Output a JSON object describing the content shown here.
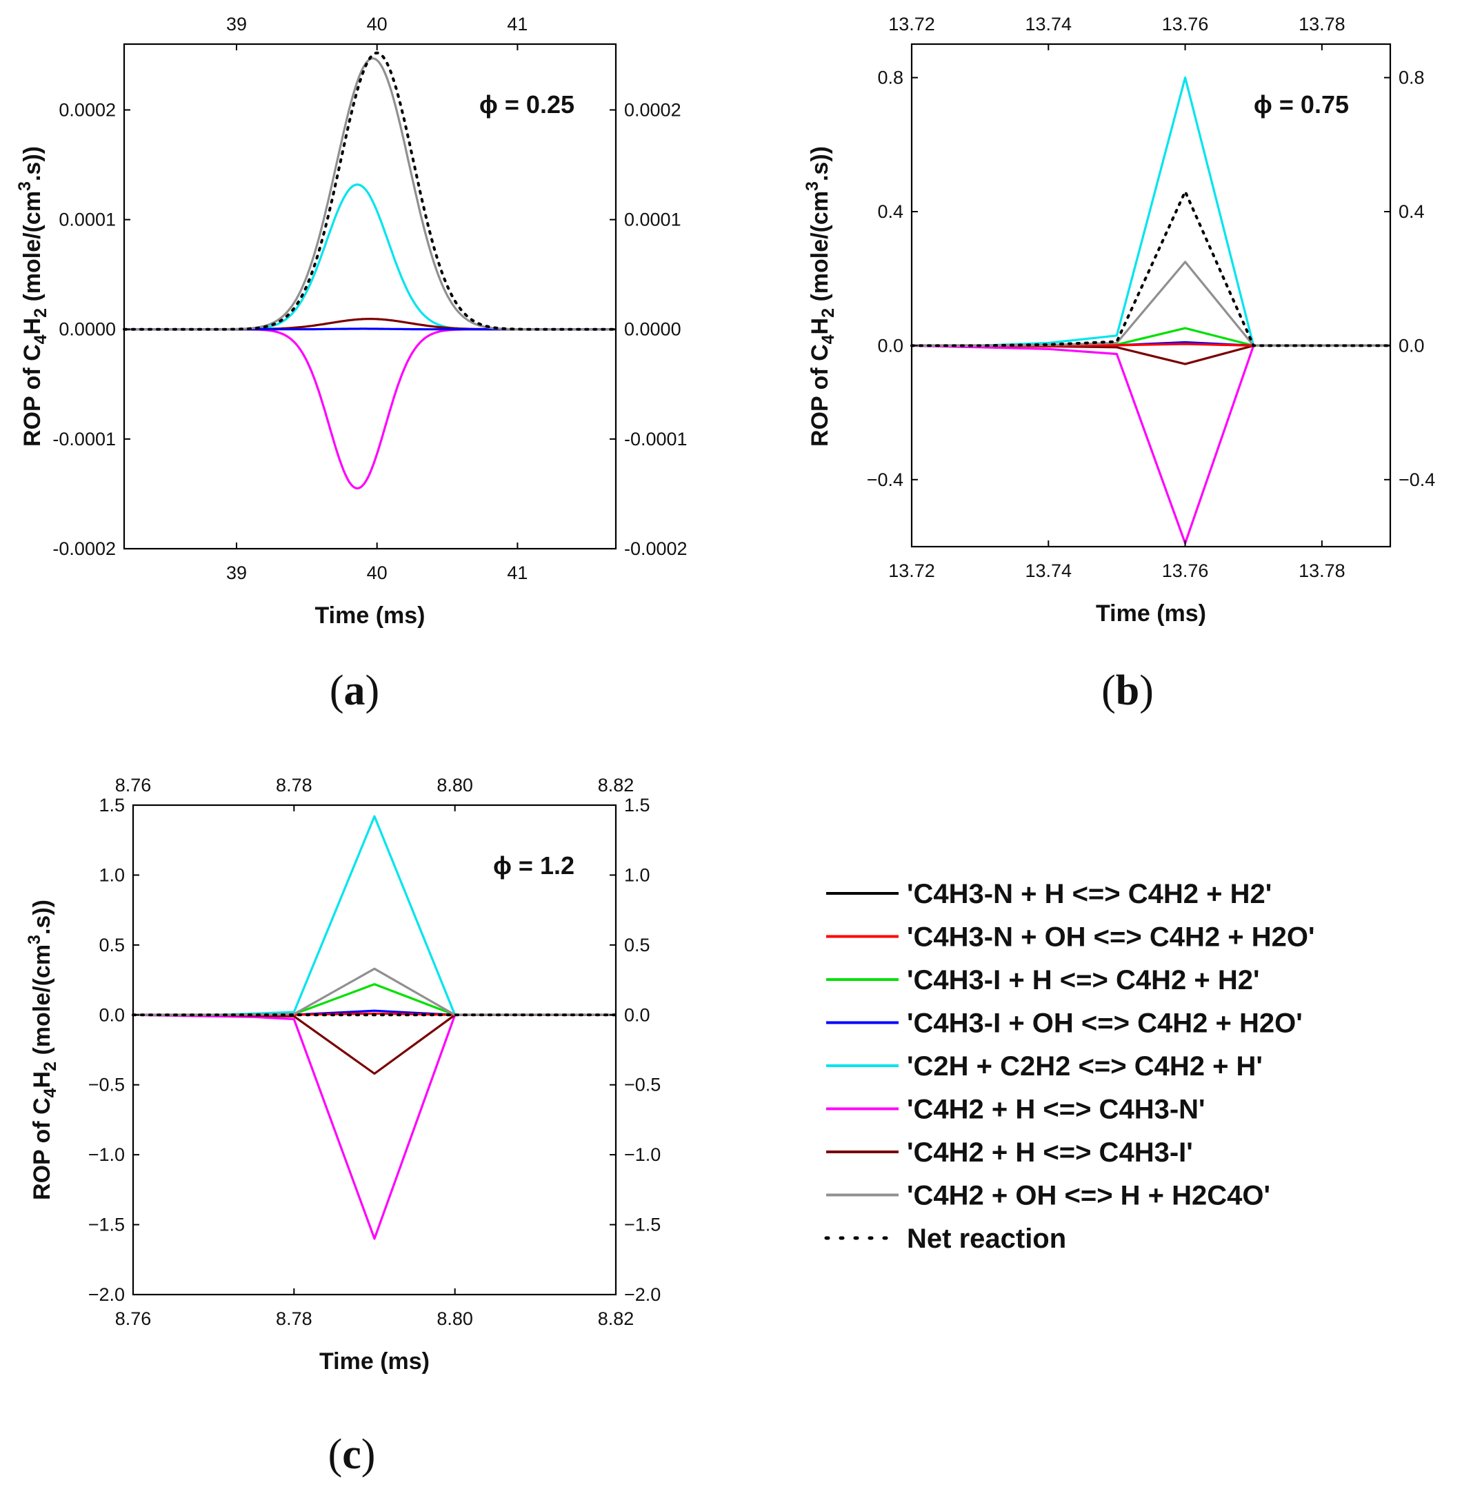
{
  "chart_data": [
    {
      "type": "line",
      "panel": "(a)",
      "panel_letter": "a",
      "annotation": "ϕ = 0.25",
      "xlabel": "Time (ms)",
      "ylabel_parts": [
        "ROP of C",
        "4",
        "H",
        "2",
        " (mole/(cm",
        "3",
        ".s))"
      ],
      "xlim": [
        38.2,
        41.7
      ],
      "ylim": [
        -0.0002,
        0.00026
      ],
      "x_ticks": [
        39,
        40,
        41
      ],
      "x_tick_labels": [
        "39",
        "40",
        "41"
      ],
      "y_ticks": [
        -0.0002,
        -0.0001,
        0.0,
        0.0001,
        0.0002
      ],
      "y_tick_labels": [
        "-0.0002",
        "-0.0001",
        "0.0000",
        "0.0001",
        "0.0002"
      ],
      "curve_shape": "gaussian",
      "gaussian_series": [
        {
          "name": "'C2H + C2H2 <=> C4H2 + H'",
          "peak": 0.000132,
          "center": 39.86,
          "sigma": 0.22
        },
        {
          "name": "'C4H2 + H <=> C4H3-N'",
          "peak": -0.000145,
          "center": 39.86,
          "sigma": 0.2
        },
        {
          "name": "'C4H2 + H <=> C4H3-I'",
          "peak": 9.5e-06,
          "center": 39.95,
          "sigma": 0.28
        },
        {
          "name": "'C4H3-I + OH <=> C4H2 + H2O'",
          "peak": 5e-07,
          "center": 39.9,
          "sigma": 0.2
        },
        {
          "name": "'C4H2 + OH <=> H + H2C4O'",
          "peak": 0.000247,
          "center": 39.97,
          "sigma": 0.26
        },
        {
          "name": "Net reaction",
          "peak": 0.000252,
          "center": 40.0,
          "sigma": 0.26
        }
      ]
    },
    {
      "type": "line",
      "panel": "(b)",
      "panel_letter": "b",
      "annotation": "ϕ = 0.75",
      "xlabel": "Time (ms)",
      "ylabel_parts": [
        "ROP of C",
        "4",
        "H",
        "2",
        " (mole/(cm",
        "3",
        ".s))"
      ],
      "xlim": [
        13.72,
        13.79
      ],
      "ylim": [
        -0.6,
        0.9
      ],
      "x_ticks": [
        13.72,
        13.74,
        13.76,
        13.78
      ],
      "x_tick_labels": [
        "13.72",
        "13.74",
        "13.76",
        "13.78"
      ],
      "y_ticks": [
        -0.4,
        0.0,
        0.4,
        0.8
      ],
      "y_tick_labels": [
        "−0.4",
        "0.0",
        "0.4",
        "0.8"
      ],
      "curve_shape": "piecewise",
      "x": [
        13.72,
        13.73,
        13.74,
        13.75,
        13.76,
        13.77,
        13.79
      ],
      "series": [
        {
          "name": "'C2H + C2H2 <=> C4H2 + H'",
          "values": [
            0,
            0,
            0.008,
            0.03,
            0.8,
            0.0,
            0
          ]
        },
        {
          "name": "'C4H2 + H <=> C4H3-N'",
          "values": [
            0,
            -0.005,
            -0.01,
            -0.025,
            -0.59,
            0.0,
            0
          ]
        },
        {
          "name": "'C4H2 + H <=> C4H3-I'",
          "values": [
            0,
            0,
            -0.002,
            -0.005,
            -0.055,
            0.0,
            0
          ]
        },
        {
          "name": "'C4H3-I + H <=> C4H2 + H2'",
          "values": [
            0,
            0,
            0.001,
            0.003,
            0.052,
            0.0,
            0
          ]
        },
        {
          "name": "'C4H3-I + OH <=> C4H2 + H2O'",
          "values": [
            0,
            0,
            0,
            0.001,
            0.01,
            0.0,
            0
          ]
        },
        {
          "name": "'C4H3-N + OH <=> C4H2 + H2O'",
          "values": [
            0,
            0,
            0,
            0.001,
            0.005,
            0.0,
            0
          ]
        },
        {
          "name": "'C4H2 + OH <=> H + H2C4O'",
          "values": [
            0,
            0,
            0.002,
            0.008,
            0.25,
            0.0,
            0
          ]
        },
        {
          "name": "Net reaction",
          "values": [
            0,
            0,
            0.003,
            0.012,
            0.46,
            0.0,
            0
          ]
        }
      ]
    },
    {
      "type": "line",
      "panel": "(c)",
      "panel_letter": "c",
      "annotation": "ϕ = 1.2",
      "xlabel": "Time (ms)",
      "ylabel_parts": [
        "ROP of C",
        "4",
        "H",
        "2",
        " (mole/(cm",
        "3",
        ".s))"
      ],
      "xlim": [
        8.76,
        8.82
      ],
      "ylim": [
        -2.0,
        1.5
      ],
      "x_ticks": [
        8.76,
        8.78,
        8.8,
        8.82
      ],
      "x_tick_labels": [
        "8.76",
        "8.78",
        "8.80",
        "8.82"
      ],
      "y_ticks": [
        -2.0,
        -1.5,
        -1.0,
        -0.5,
        0.0,
        0.5,
        1.0,
        1.5
      ],
      "y_tick_labels": [
        "−2.0",
        "−1.5",
        "−1.0",
        "−0.5",
        "0.0",
        "0.5",
        "1.0",
        "1.5"
      ],
      "curve_shape": "piecewise",
      "x": [
        8.76,
        8.77,
        8.775,
        8.78,
        8.79,
        8.8,
        8.82
      ],
      "series": [
        {
          "name": "'C2H + C2H2 <=> C4H2 + H'",
          "values": [
            0,
            0,
            0.01,
            0.02,
            1.42,
            0.0,
            0
          ]
        },
        {
          "name": "'C4H2 + H <=> C4H3-N'",
          "values": [
            0,
            -0.01,
            -0.015,
            -0.03,
            -1.6,
            0.0,
            0
          ]
        },
        {
          "name": "'C4H2 + H <=> C4H3-I'",
          "values": [
            0,
            0,
            -0.005,
            -0.01,
            -0.42,
            0.0,
            0
          ]
        },
        {
          "name": "'C4H3-I + H <=> C4H2 + H2'",
          "values": [
            0,
            0,
            0.002,
            0.005,
            0.22,
            0.0,
            0
          ]
        },
        {
          "name": "'C4H3-I + OH <=> C4H2 + H2O'",
          "values": [
            0,
            0,
            0,
            0.001,
            0.03,
            0.0,
            0
          ]
        },
        {
          "name": "'C4H3-N + OH <=> C4H2 + H2O'",
          "values": [
            0,
            0,
            0,
            0.001,
            0.01,
            0.0,
            0
          ]
        },
        {
          "name": "'C4H2 + OH <=> H + H2C4O'",
          "values": [
            0,
            0,
            0.003,
            0.006,
            0.33,
            0.0,
            0
          ]
        },
        {
          "name": "Net reaction",
          "values": [
            0,
            0,
            0,
            0,
            0.0,
            0.0,
            0
          ]
        }
      ]
    }
  ],
  "legend": {
    "placement": "bottom-right",
    "entries": [
      {
        "label": "'C4H3-N + H <=> C4H2 + H2'",
        "color": "#000000",
        "style": "solid"
      },
      {
        "label": "'C4H3-N + OH <=> C4H2 + H2O'",
        "color": "#ff0000",
        "style": "solid"
      },
      {
        "label": "'C4H3-I + H <=> C4H2 + H2'",
        "color": "#00e000",
        "style": "solid"
      },
      {
        "label": "'C4H3-I + OH <=> C4H2 + H2O'",
        "color": "#0000ff",
        "style": "solid"
      },
      {
        "label": "'C2H + C2H2 <=> C4H2 + H'",
        "color": "#00e5ee",
        "style": "solid"
      },
      {
        "label": "'C4H2 + H <=> C4H3-N'",
        "color": "#ff00ff",
        "style": "solid"
      },
      {
        "label": "'C4H2 + H <=> C4H3-I'",
        "color": "#7a0000",
        "style": "solid"
      },
      {
        "label": "'C4H2 + OH <=> H + H2C4O'",
        "color": "#909090",
        "style": "solid"
      },
      {
        "label": "Net reaction",
        "color": "#000000",
        "style": "dotted"
      }
    ]
  }
}
